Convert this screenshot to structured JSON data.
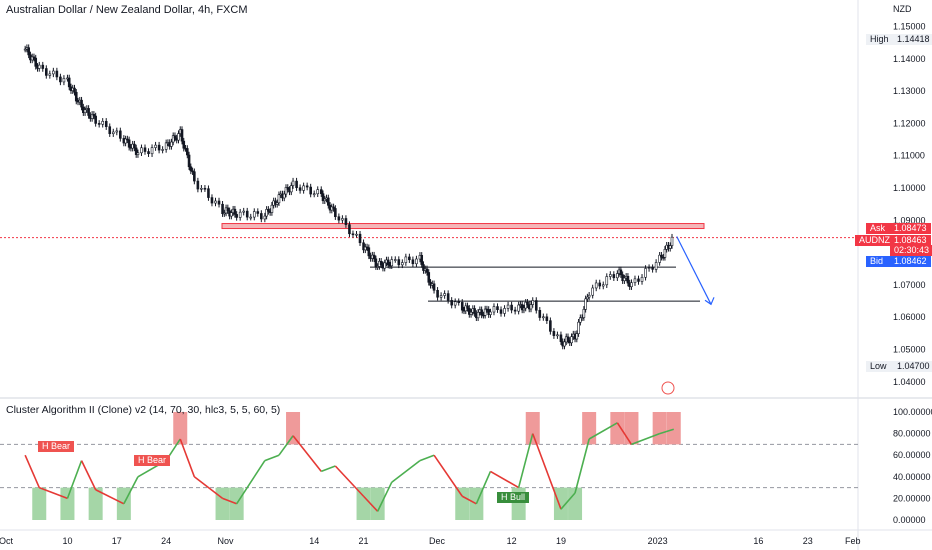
{
  "header": {
    "title": "Australian Dollar / New Zealand Dollar, 4h, FXCM",
    "currency": "NZD"
  },
  "indicator": {
    "title": "Cluster Algorithm II (Clone) v2 (14, 70, 30, hlc3, 5, 5, 60, 5)"
  },
  "price_tags": {
    "high_label": "High",
    "high_value": "1.14418",
    "ask_label": "Ask",
    "ask_value": "1.08473",
    "symbol_label": "AUDNZD",
    "symbol_value": "1.08463",
    "countdown": "02:30:43",
    "bid_label": "Bid",
    "bid_value": "1.08462",
    "low_label": "Low",
    "low_value": "1.04700"
  },
  "annotations": {
    "bear1": "H Bear",
    "bear2": "H Bear",
    "bull1": "H Bull"
  },
  "colors": {
    "up": "#4caf50",
    "down": "#e53935",
    "candle": "#131722",
    "zone": "#f4b6b8",
    "arrow": "#2962ff",
    "price_line": "#f23645",
    "bid": "#2962ff",
    "bear_box": "#ef5350",
    "bull_box": "#388e3c"
  },
  "chart_data": [
    {
      "type": "candlestick",
      "title": "Australian Dollar / New Zealand Dollar, 4h, FXCM",
      "ylabel": "NZD",
      "ylim": [
        1.035,
        1.152
      ],
      "y_ticks": [
        "1.15000",
        "1.14000",
        "1.13000",
        "1.12000",
        "1.11000",
        "1.10000",
        "1.09000",
        "1.07000",
        "1.06000",
        "1.05000",
        "1.04000"
      ],
      "x_ticks": [
        "Oct",
        "10",
        "17",
        "24",
        "Nov",
        "14",
        "21",
        "Dec",
        "12",
        "19",
        "2023",
        "16",
        "23",
        "Feb"
      ],
      "x": [
        "Oct 4",
        "Oct 6",
        "Oct 10",
        "Oct 12",
        "Oct 14",
        "Oct 18",
        "Oct 20",
        "Oct 24",
        "Oct 26",
        "Oct 28",
        "Nov 1",
        "Nov 3",
        "Nov 7",
        "Nov 9",
        "Nov 11",
        "Nov 15",
        "Nov 17",
        "Nov 21",
        "Nov 23",
        "Nov 25",
        "Nov 29",
        "Dec 1",
        "Dec 5",
        "Dec 7",
        "Dec 9",
        "Dec 13",
        "Dec 15",
        "Dec 19",
        "Dec 21",
        "Dec 23",
        "Dec 27",
        "Dec 29",
        "Jan 2",
        "Jan 4"
      ],
      "close": [
        1.143,
        1.137,
        1.133,
        1.125,
        1.121,
        1.115,
        1.111,
        1.113,
        1.117,
        1.102,
        1.093,
        1.092,
        1.0915,
        1.097,
        1.101,
        1.098,
        1.092,
        1.082,
        1.076,
        1.077,
        1.078,
        1.068,
        1.063,
        1.061,
        1.062,
        1.063,
        1.064,
        1.052,
        1.054,
        1.068,
        1.074,
        1.07,
        1.078,
        1.0846
      ],
      "high": 1.14418,
      "low": 1.047,
      "resistance_zone": [
        1.088,
        1.089
      ],
      "support_lines": [
        1.0755,
        1.065
      ],
      "current": {
        "ask": 1.08473,
        "last": 1.08463,
        "bid": 1.08462
      },
      "projection": {
        "from": [
          "Jan 4",
          1.085
        ],
        "to": [
          "Jan 9",
          1.064
        ]
      }
    },
    {
      "type": "line",
      "title": "Cluster Algorithm II (Clone) v2 (14, 70, 30, hlc3, 5, 5, 60, 5)",
      "ylim": [
        0,
        100
      ],
      "y_ticks": [
        "100.00000",
        "80.00000",
        "60.00000",
        "40.00000",
        "20.00000",
        "0.00000"
      ],
      "reference_levels": [
        70,
        30
      ],
      "x": [
        "Oct 4",
        "Oct 6",
        "Oct 10",
        "Oct 12",
        "Oct 14",
        "Oct 18",
        "Oct 20",
        "Oct 24",
        "Oct 26",
        "Oct 28",
        "Nov 1",
        "Nov 3",
        "Nov 7",
        "Nov 9",
        "Nov 11",
        "Nov 15",
        "Nov 17",
        "Nov 21",
        "Nov 23",
        "Nov 25",
        "Nov 29",
        "Dec 1",
        "Dec 5",
        "Dec 7",
        "Dec 9",
        "Dec 13",
        "Dec 15",
        "Dec 19",
        "Dec 21",
        "Dec 23",
        "Dec 27",
        "Dec 29",
        "Jan 2",
        "Jan 4"
      ],
      "values": [
        60,
        30,
        20,
        55,
        28,
        15,
        40,
        55,
        75,
        40,
        20,
        15,
        55,
        60,
        78,
        45,
        50,
        22,
        8,
        35,
        55,
        60,
        22,
        15,
        45,
        30,
        80,
        10,
        25,
        75,
        90,
        70,
        80,
        84
      ]
    }
  ]
}
